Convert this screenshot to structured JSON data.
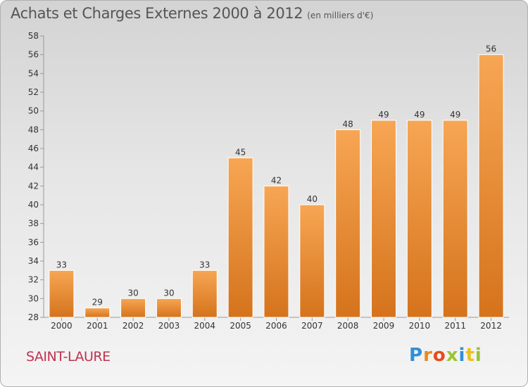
{
  "title": "Achats et Charges Externes 2000 à 2012",
  "title_unit": "(en milliers d'€)",
  "city": "SAINT-LAURE",
  "logo": [
    "P",
    "r",
    "o",
    "x",
    "i",
    "t",
    "i"
  ],
  "colors": {
    "bar_top": "#f7a654",
    "bar_bottom": "#d5731c",
    "bar_edge": "#ffffff",
    "city": "#c0314f"
  },
  "chart_data": {
    "type": "bar",
    "title": "Achats et Charges Externes 2000 à 2012",
    "subtitle": "(en milliers d'€)",
    "xlabel": "",
    "ylabel": "",
    "categories": [
      "2000",
      "2001",
      "2002",
      "2003",
      "2004",
      "2005",
      "2006",
      "2007",
      "2008",
      "2009",
      "2010",
      "2011",
      "2012"
    ],
    "values": [
      33,
      29,
      30,
      30,
      33,
      45,
      42,
      40,
      48,
      49,
      49,
      49,
      56
    ],
    "ylim": [
      28,
      58
    ],
    "yticks": [
      28,
      30,
      32,
      34,
      36,
      38,
      40,
      42,
      44,
      46,
      48,
      50,
      52,
      54,
      56,
      58
    ],
    "grid": false,
    "legend": "none",
    "data_labels": true
  }
}
